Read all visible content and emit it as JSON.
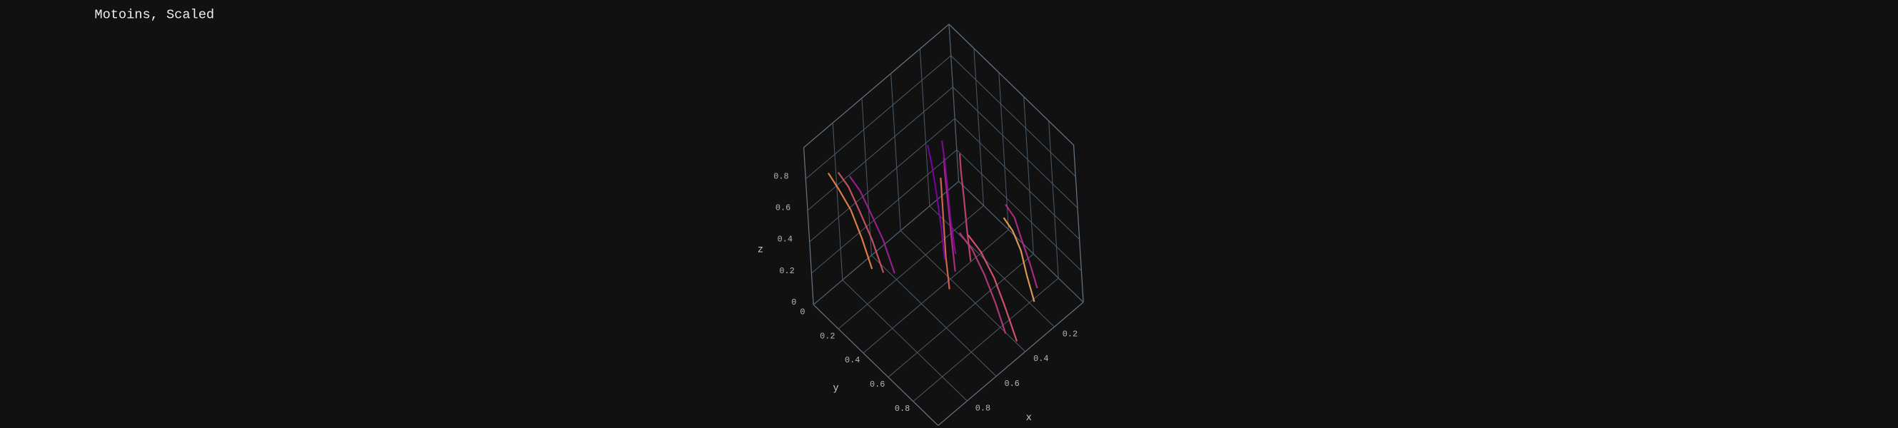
{
  "chart_data": {
    "type": "line3d",
    "title": "Motoins, Scaled",
    "x_label": "x",
    "y_label": "y",
    "z_label": "z",
    "xlim": [
      0,
      1
    ],
    "ylim": [
      0,
      1
    ],
    "zlim": [
      0,
      1
    ],
    "xticks": [
      0.2,
      0.4,
      0.6,
      0.8
    ],
    "yticks": [
      0,
      0.2,
      0.4,
      0.6,
      0.8
    ],
    "zticks": [
      0,
      0.2,
      0.4,
      0.6,
      0.8
    ],
    "grid": true,
    "series": [
      {
        "color": "#b83289",
        "x": [
          0.44,
          0.47,
          0.5,
          0.53,
          0.55
        ],
        "y": [
          0.46,
          0.5,
          0.55,
          0.6,
          0.64
        ],
        "z": [
          0.85,
          0.8,
          0.68,
          0.52,
          0.35
        ]
      },
      {
        "color": "#8b0aa5",
        "x": [
          0.4,
          0.43,
          0.46,
          0.49,
          0.51
        ],
        "y": [
          0.4,
          0.45,
          0.5,
          0.55,
          0.6
        ],
        "z": [
          0.88,
          0.83,
          0.72,
          0.56,
          0.4
        ]
      },
      {
        "color": "#e66c5c",
        "x": [
          0.5,
          0.53,
          0.56,
          0.59,
          0.61
        ],
        "y": [
          0.5,
          0.54,
          0.58,
          0.62,
          0.66
        ],
        "z": [
          0.8,
          0.74,
          0.62,
          0.46,
          0.3
        ]
      },
      {
        "color": "#cc4778",
        "x": [
          0.35,
          0.38,
          0.41,
          0.44,
          0.46
        ],
        "y": [
          0.48,
          0.52,
          0.57,
          0.62,
          0.66
        ],
        "z": [
          0.82,
          0.77,
          0.66,
          0.5,
          0.36
        ]
      },
      {
        "color": "#7e03a8",
        "x": [
          0.48,
          0.5,
          0.52,
          0.54,
          0.56
        ],
        "y": [
          0.38,
          0.43,
          0.48,
          0.53,
          0.57
        ],
        "z": [
          0.9,
          0.84,
          0.72,
          0.55,
          0.38
        ]
      },
      {
        "color": "#d8576b",
        "x": [
          0.8,
          0.8,
          0.8,
          0.79,
          0.79
        ],
        "y": [
          0.02,
          0.1,
          0.18,
          0.26,
          0.34
        ],
        "z": [
          0.7,
          0.67,
          0.58,
          0.45,
          0.3
        ]
      },
      {
        "color": "#a42197",
        "x": [
          0.75,
          0.75,
          0.75,
          0.74,
          0.74
        ],
        "y": [
          0.05,
          0.13,
          0.21,
          0.29,
          0.37
        ],
        "z": [
          0.66,
          0.63,
          0.55,
          0.43,
          0.28
        ]
      },
      {
        "color": "#f48849",
        "x": [
          0.85,
          0.85,
          0.84,
          0.84,
          0.84
        ],
        "y": [
          0.0,
          0.08,
          0.16,
          0.24,
          0.31
        ],
        "z": [
          0.72,
          0.68,
          0.6,
          0.48,
          0.34
        ]
      },
      {
        "color": "#e3577a",
        "x": [
          0.42,
          0.42,
          0.42,
          0.42,
          0.42
        ],
        "y": [
          0.6,
          0.7,
          0.8,
          0.88,
          0.96
        ],
        "z": [
          0.45,
          0.42,
          0.33,
          0.2,
          0.05
        ]
      },
      {
        "color": "#c13b82",
        "x": [
          0.46,
          0.46,
          0.46,
          0.46,
          0.46
        ],
        "y": [
          0.58,
          0.68,
          0.77,
          0.85,
          0.92
        ],
        "z": [
          0.48,
          0.45,
          0.36,
          0.24,
          0.1
        ]
      },
      {
        "color": "#f2a65a",
        "x": [
          0.28,
          0.28,
          0.28,
          0.29,
          0.29
        ],
        "y": [
          0.73,
          0.8,
          0.86,
          0.91,
          0.96
        ],
        "z": [
          0.55,
          0.52,
          0.44,
          0.33,
          0.2
        ]
      },
      {
        "color": "#b52f8c",
        "x": [
          0.24,
          0.24,
          0.25,
          0.25,
          0.25
        ],
        "y": [
          0.7,
          0.77,
          0.83,
          0.89,
          0.94
        ],
        "z": [
          0.58,
          0.55,
          0.47,
          0.36,
          0.24
        ]
      }
    ]
  }
}
